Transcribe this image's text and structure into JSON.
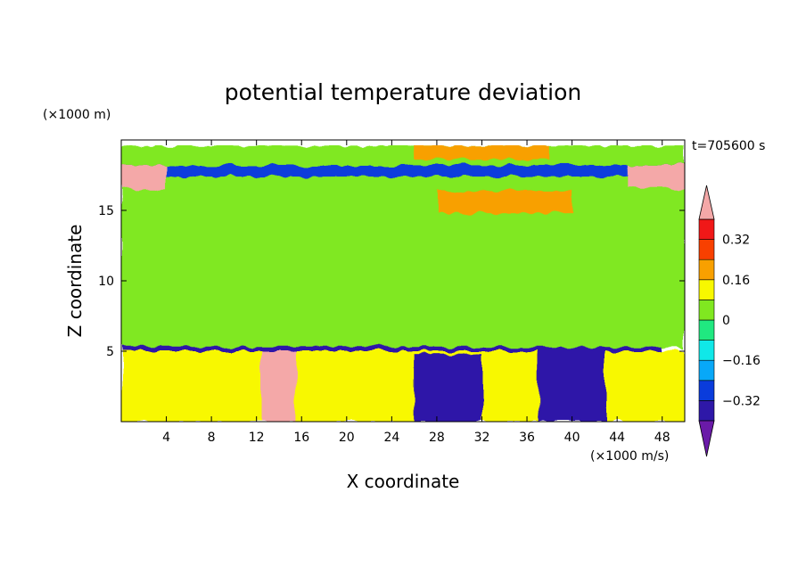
{
  "chart_data": {
    "type": "heatmap",
    "title": "potential temperature deviation",
    "xlabel": "X coordinate",
    "ylabel": "Z coordinate",
    "x_unit": "(×1000 m/s)",
    "y_unit": "(×1000 m)",
    "time_label": "t=705600 s",
    "xlim": [
      0,
      50
    ],
    "ylim": [
      0,
      20
    ],
    "x_ticks": [
      4,
      8,
      12,
      16,
      20,
      24,
      28,
      32,
      36,
      40,
      44,
      48
    ],
    "y_ticks": [
      5,
      10,
      15
    ],
    "colorbar": {
      "levels": [
        -0.4,
        -0.32,
        -0.24,
        -0.16,
        -0.08,
        0,
        0.08,
        0.16,
        0.24,
        0.32,
        0.4
      ],
      "tick_labels": [
        "0.32",
        "0.16",
        "0",
        "−0.16",
        "−0.32"
      ],
      "tick_values": [
        0.32,
        0.16,
        0,
        -0.16,
        -0.32
      ],
      "colors": [
        "#6a1aa8",
        "#2e18a8",
        "#0a3cdc",
        "#08a8f8",
        "#10e8e8",
        "#20e880",
        "#80e820",
        "#f8f800",
        "#f8a000",
        "#f84000",
        "#f01818",
        "#f4a8a8"
      ],
      "extend": "both"
    },
    "regions": [
      {
        "name": "base",
        "x": [
          0,
          50
        ],
        "z": [
          5.2,
          19.6
        ],
        "value": 0.02
      },
      {
        "name": "top-blue-band",
        "x": [
          0,
          50
        ],
        "z": [
          17.4,
          18.2
        ],
        "value": -0.3
      },
      {
        "name": "top-yellow",
        "x": [
          26,
          38
        ],
        "z": [
          18.6,
          19.6
        ],
        "value": 0.18
      },
      {
        "name": "upper-yellow",
        "x": [
          28,
          40
        ],
        "z": [
          14.8,
          16.4
        ],
        "value": 0.2
      },
      {
        "name": "inversion-line",
        "x": [
          0,
          48
        ],
        "z": [
          5.0,
          5.3
        ],
        "value": -0.35
      },
      {
        "name": "lower-layer",
        "x": [
          0,
          50
        ],
        "z": [
          0,
          5.0
        ],
        "value": 0.1
      },
      {
        "name": "warm-plume",
        "x": [
          12.5,
          15.5
        ],
        "z": [
          0,
          5.0
        ],
        "value": 0.45
      },
      {
        "name": "cold-pool-a",
        "x": [
          26,
          32
        ],
        "z": [
          0,
          4.8
        ],
        "value": -0.38
      },
      {
        "name": "cold-pool-b",
        "x": [
          37,
          43
        ],
        "z": [
          0,
          5.0
        ],
        "value": -0.4
      },
      {
        "name": "upper-left-pink",
        "x": [
          0,
          4
        ],
        "z": [
          16.5,
          18.2
        ],
        "value": 0.45
      },
      {
        "name": "upper-right-pink",
        "x": [
          45,
          50
        ],
        "z": [
          16.6,
          18.2
        ],
        "value": 0.45
      }
    ]
  }
}
